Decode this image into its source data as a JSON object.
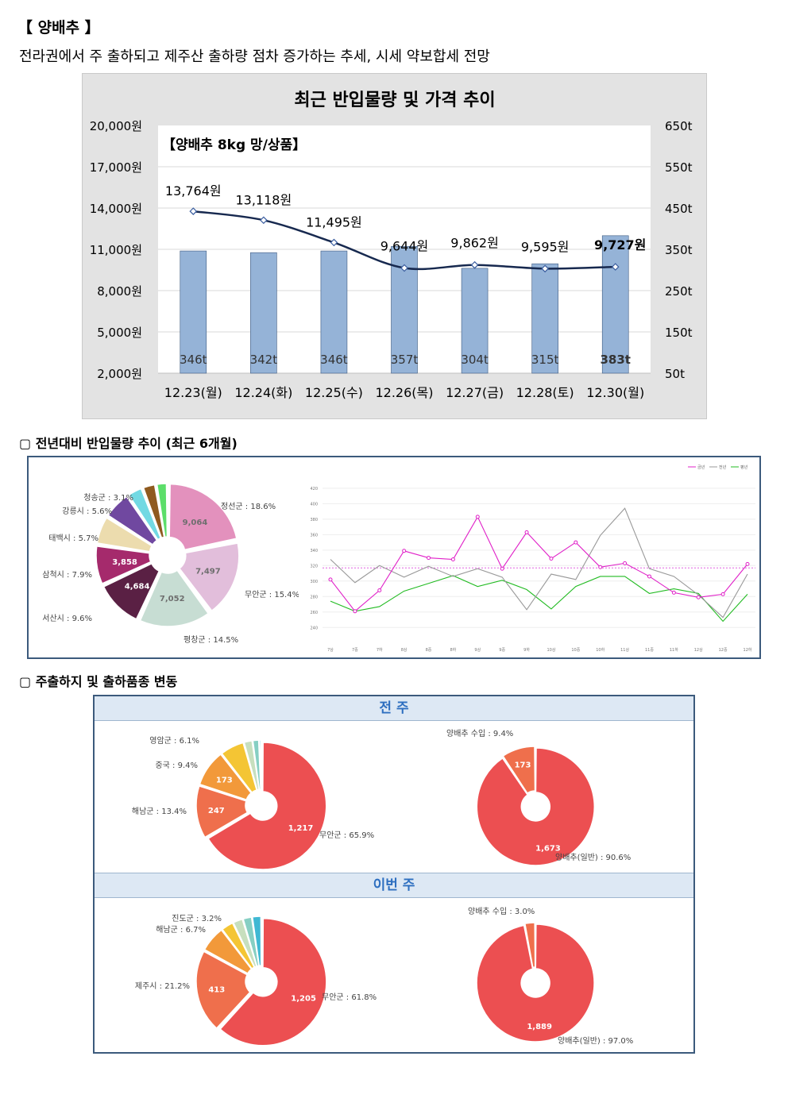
{
  "header": {
    "title": "【 양배추 】",
    "subtitle": "전라권에서 주 출하되고 제주산 출하량 점차 증가하는 추세, 시세 약보합세 전망"
  },
  "price_chart": {
    "chart_data": {
      "type": "bar",
      "title": "최근 반입물량 및 가격 추이",
      "subtitle": "【양배추 8kg 망/상품】",
      "categories": [
        "12.23(월)",
        "12.24(화)",
        "12.25(수)",
        "12.26(목)",
        "12.27(금)",
        "12.28(토)",
        "12.30(월)"
      ],
      "series": [
        {
          "type": "bar",
          "axis": "right",
          "unit": "t",
          "values": [
            346,
            342,
            346,
            357,
            304,
            315,
            383
          ],
          "labels": [
            "346t",
            "342t",
            "346t",
            "357t",
            "304t",
            "315t",
            "383t"
          ]
        },
        {
          "type": "line",
          "axis": "left",
          "unit": "원",
          "values": [
            13764,
            13118,
            11495,
            9644,
            9862,
            9595,
            9727
          ],
          "labels": [
            "13,764원",
            "13,118원",
            "11,495원",
            "9,644원",
            "9,862원",
            "9,595원",
            "9,727원"
          ]
        }
      ],
      "left_axis": {
        "ticks": [
          "20,000원",
          "17,000원",
          "14,000원",
          "11,000원",
          "8,000원",
          "5,000원",
          "2,000원"
        ],
        "ylim": [
          2000,
          20000
        ]
      },
      "right_axis": {
        "ticks": [
          "650t",
          "550t",
          "450t",
          "350t",
          "250t",
          "150t",
          "50t"
        ],
        "ylim": [
          50,
          650
        ]
      },
      "bar_color": "#95b3d7",
      "line_color": "#17294f"
    }
  },
  "section1": {
    "label": "▢  전년대비 반입물량 추이 (최근 6개월)",
    "pie": {
      "chart_data": {
        "type": "pie",
        "slices": [
          {
            "label": "정선군 : 18.6%",
            "value": 9064,
            "value_label": "9,064",
            "color": "#e391bd"
          },
          {
            "label": "무안군 : 15.4%",
            "value": 7497,
            "value_label": "7,497",
            "color": "#e2bedb"
          },
          {
            "label": "평창군 : 14.5%",
            "value": 7052,
            "value_label": "7,052",
            "color": "#c7ddd3"
          },
          {
            "label": "서산시 : 9.6%",
            "value": 4684,
            "value_label": "4,684",
            "color": "#5a2044"
          },
          {
            "label": "삼척시 : 7.9%",
            "value": 3858,
            "value_label": "3,858",
            "color": "#a52a6c"
          },
          {
            "label": "태백시 : 5.7%",
            "value": 2777,
            "value_label": "",
            "color": "#ecdcae"
          },
          {
            "label": "강릉시 : 5.6%",
            "value": 2728,
            "value_label": "",
            "color": "#7048a0"
          },
          {
            "label": "청송군 : 3.1%",
            "value": 1510,
            "value_label": "",
            "color": "#72d9e3"
          },
          {
            "label": "",
            "value": 1300,
            "value_label": "",
            "color": "#8f5a1f"
          },
          {
            "label": "",
            "value": 1100,
            "value_label": "",
            "color": "#5cde6a"
          }
        ]
      }
    },
    "line": {
      "chart_data": {
        "type": "line",
        "x": [
          "7상",
          "7중",
          "7하",
          "8상",
          "8중",
          "8하",
          "9상",
          "9중",
          "9하",
          "10상",
          "10중",
          "10하",
          "11상",
          "11중",
          "11하",
          "12상",
          "12중",
          "12하"
        ],
        "y_ticks": [
          "420",
          "400",
          "380",
          "360",
          "340",
          "320",
          "300",
          "280",
          "260",
          "240"
        ],
        "ylim": [
          230,
          425
        ],
        "series": [
          {
            "name": "금년",
            "color": "#e020c8",
            "marker": "circle",
            "values": [
              302,
              261,
              288,
              339,
              330,
              328,
              383,
              316,
              363,
              329,
              350,
              318,
              323,
              306,
              285,
              279,
              283,
              322
            ]
          },
          {
            "name": "전년",
            "color": "#999999",
            "values": [
              328,
              298,
              320,
              305,
              319,
              306,
              316,
              305,
              263,
              309,
              302,
              359,
              394,
              316,
              306,
              282,
              253,
              309
            ]
          },
          {
            "name": "평년",
            "color": "#22bb22",
            "values": [
              274,
              261,
              267,
              287,
              297,
              307,
              293,
              301,
              289,
              264,
              293,
              306,
              306,
              284,
              290,
              284,
              248,
              283
            ]
          }
        ],
        "reference_value": 317,
        "reference_color": "#e060e0"
      }
    }
  },
  "section2": {
    "label": "▢  주출하지 및 출하품종 변동",
    "last_week": {
      "header": "전 주",
      "region_pie": {
        "chart_data": {
          "type": "pie",
          "slices": [
            {
              "label": "무안군 : 65.9%",
              "value": 1217,
              "value_label": "1,217",
              "color": "#ec4f51"
            },
            {
              "label": "해남군 : 13.4%",
              "value": 247,
              "value_label": "247",
              "color": "#ef6f4c"
            },
            {
              "label": "중국 : 9.4%",
              "value": 173,
              "value_label": "173",
              "color": "#f2993a"
            },
            {
              "label": "영암군 : 6.1%",
              "value": 113,
              "value_label": "",
              "color": "#f4c534"
            },
            {
              "label": "",
              "value": 40,
              "value_label": "",
              "color": "#c7dfbe"
            },
            {
              "label": "",
              "value": 30,
              "value_label": "",
              "color": "#86cfc3"
            },
            {
              "label": "",
              "value": 10,
              "value_label": "",
              "color": "#3fb8d3"
            }
          ]
        }
      },
      "variety_pie": {
        "chart_data": {
          "type": "pie",
          "slices": [
            {
              "label": "양배추(일반) : 90.6%",
              "value": 1673,
              "value_label": "1,673",
              "color": "#ec4f51"
            },
            {
              "label": "양배추 수입 : 9.4%",
              "value": 173,
              "value_label": "173",
              "color": "#ef6f4c"
            }
          ]
        }
      }
    },
    "this_week": {
      "header": "이번 주",
      "region_pie": {
        "chart_data": {
          "type": "pie",
          "slices": [
            {
              "label": "무안군 : 61.8%",
              "value": 1205,
              "value_label": "1,205",
              "color": "#ec4f51"
            },
            {
              "label": "제주시 : 21.2%",
              "value": 413,
              "value_label": "413",
              "color": "#ef6f4c"
            },
            {
              "label": "해남군 : 6.7%",
              "value": 130,
              "value_label": "",
              "color": "#f2993a"
            },
            {
              "label": "진도군 : 3.2%",
              "value": 62,
              "value_label": "",
              "color": "#f4c534"
            },
            {
              "label": "",
              "value": 50,
              "value_label": "",
              "color": "#c7dfbe"
            },
            {
              "label": "",
              "value": 45,
              "value_label": "",
              "color": "#86cfc3"
            },
            {
              "label": "",
              "value": 45,
              "value_label": "",
              "color": "#3fb8d3"
            }
          ]
        }
      },
      "variety_pie": {
        "chart_data": {
          "type": "pie",
          "slices": [
            {
              "label": "양배추(일반) : 97.0%",
              "value": 1889,
              "value_label": "1,889",
              "color": "#ec4f51"
            },
            {
              "label": "양배추 수입 : 3.0%",
              "value": 58,
              "value_label": "",
              "color": "#ef6f4c"
            }
          ]
        }
      }
    }
  }
}
